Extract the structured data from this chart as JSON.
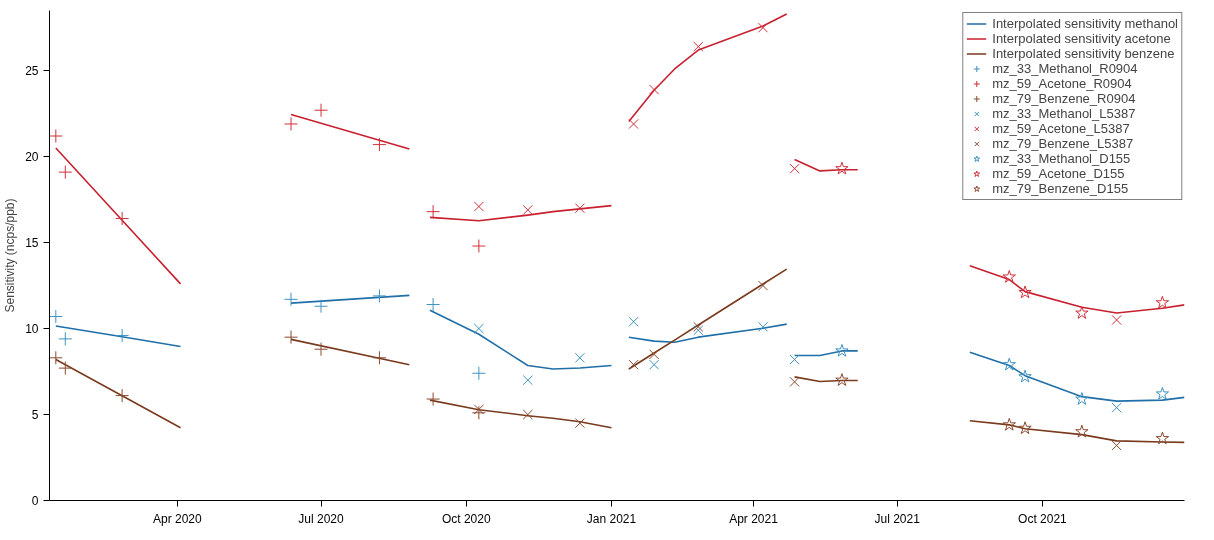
{
  "chart_data": {
    "type": "line",
    "ylabel": "Sensitivity (ncps/ppb)",
    "x": [
      "2020-01-15",
      "2020-02-26",
      "2020-04-03",
      "2020-05-10",
      "2020-06-12",
      "2020-08-26",
      "2020-09-01",
      "2020-09-08",
      "2020-10-09",
      "2020-11-09",
      "2020-11-25",
      "2020-12-12",
      "2021-01-01",
      "2021-01-06",
      "2021-01-12",
      "2021-01-28",
      "2021-02-10",
      "2021-02-25",
      "2021-04-07",
      "2021-04-22",
      "2021-04-25",
      "2021-04-27",
      "2021-05-13",
      "2021-05-27",
      "2021-06-06",
      "2021-07-10",
      "2021-08-16",
      "2021-09-10",
      "2021-09-20",
      "2021-10-26",
      "2021-11-17",
      "2021-12-16",
      "2021-12-30"
    ],
    "series": [
      {
        "name": "Interpolated sensitivity methanol",
        "color": "#1f6fa8",
        "values": [
          10.15,
          9.52,
          8.96,
          null,
          11.48,
          11.93,
          null,
          11.07,
          9.67,
          7.85,
          7.65,
          7.71,
          7.85,
          null,
          9.5,
          9.27,
          9.2,
          9.5,
          10.02,
          10.26,
          null,
          8.43,
          8.43,
          8.7,
          8.7,
          null,
          8.62,
          7.85,
          7.26,
          6.04,
          5.78,
          5.84,
          6.0
        ]
      },
      {
        "name": "Interpolated sensitivity acetone",
        "color": "#c8202f",
        "values": [
          20.5,
          16.3,
          12.6,
          null,
          22.45,
          20.45,
          null,
          16.47,
          16.27,
          16.6,
          16.8,
          16.96,
          17.15,
          null,
          22.05,
          23.86,
          25.1,
          26.2,
          27.6,
          28.3,
          null,
          19.83,
          19.17,
          19.24,
          19.24,
          null,
          13.65,
          12.85,
          12.15,
          11.24,
          10.91,
          11.18,
          11.38
        ]
      },
      {
        "name": "Interpolated sensitivity benzene",
        "color": "#7a3a1e",
        "values": [
          8.2,
          6.09,
          4.23,
          null,
          9.37,
          7.9,
          null,
          5.84,
          5.28,
          4.93,
          4.78,
          4.58,
          4.23,
          null,
          7.65,
          8.58,
          9.33,
          10.21,
          12.59,
          13.46,
          null,
          7.19,
          6.92,
          6.98,
          6.98,
          null,
          4.64,
          4.4,
          4.17,
          3.83,
          3.47,
          3.4,
          3.38
        ]
      },
      {
        "name": "mz_33_Methanol_R0904",
        "type": "scatter",
        "marker": "cross",
        "color": "#3d93c2",
        "x": [
          "2020-01-15",
          "2020-01-21",
          "2020-02-26",
          "2020-06-12",
          "2020-07-01",
          "2020-08-07",
          "2020-09-10",
          "2020-10-09"
        ],
        "values": [
          10.7,
          9.4,
          9.6,
          11.7,
          11.3,
          11.9,
          11.4,
          7.4
        ]
      },
      {
        "name": "mz_59_Acetone_R0904",
        "type": "scatter",
        "marker": "cross",
        "color": "#d0303a",
        "x": [
          "2020-01-15",
          "2020-01-21",
          "2020-02-26",
          "2020-06-12",
          "2020-07-01",
          "2020-08-07",
          "2020-09-10",
          "2020-10-09"
        ],
        "values": [
          21.2,
          19.1,
          16.4,
          21.9,
          22.7,
          20.7,
          16.8,
          14.8
        ]
      },
      {
        "name": "mz_79_Benzene_R0904",
        "type": "scatter",
        "marker": "cross",
        "color": "#8a4a30",
        "x": [
          "2020-01-15",
          "2020-01-21",
          "2020-02-26",
          "2020-06-12",
          "2020-07-01",
          "2020-08-07",
          "2020-09-10",
          "2020-10-09"
        ],
        "values": [
          8.3,
          7.7,
          6.1,
          9.5,
          8.8,
          8.3,
          5.9,
          5.1
        ]
      },
      {
        "name": "mz_33_Methanol_L5387",
        "type": "scatter",
        "marker": "x",
        "color": "#3d93c2",
        "x": [
          "2020-10-09",
          "2020-11-09",
          "2020-12-12",
          "2021-01-15",
          "2021-01-28",
          "2021-02-25",
          "2021-04-07",
          "2021-04-27",
          "2021-11-17"
        ],
        "values": [
          10.0,
          7.0,
          8.3,
          10.4,
          7.9,
          9.9,
          10.1,
          8.2,
          5.4
        ]
      },
      {
        "name": "mz_59_Acetone_L5387",
        "type": "scatter",
        "marker": "x",
        "color": "#d0303a",
        "x": [
          "2020-10-09",
          "2020-11-09",
          "2020-12-12",
          "2021-01-15",
          "2021-01-28",
          "2021-02-25",
          "2021-04-07",
          "2021-04-27",
          "2021-11-17"
        ],
        "values": [
          17.1,
          16.9,
          17.0,
          21.9,
          23.9,
          26.4,
          27.5,
          19.3,
          10.5
        ]
      },
      {
        "name": "mz_79_Benzene_L5387",
        "type": "scatter",
        "marker": "x",
        "color": "#8a4a30",
        "x": [
          "2020-10-09",
          "2020-11-09",
          "2020-12-12",
          "2021-01-15",
          "2021-01-28",
          "2021-02-25",
          "2021-04-07",
          "2021-04-27",
          "2021-11-17"
        ],
        "values": [
          5.3,
          5.0,
          4.5,
          7.9,
          8.5,
          10.1,
          12.5,
          6.9,
          3.2
        ]
      },
      {
        "name": "mz_33_Methanol_D155",
        "type": "scatter",
        "marker": "star",
        "color": "#3d93c2",
        "x": [
          "2021-05-27",
          "2021-09-10",
          "2021-09-20",
          "2021-10-26",
          "2021-12-16"
        ],
        "values": [
          8.7,
          7.9,
          7.2,
          5.9,
          6.2
        ]
      },
      {
        "name": "mz_59_Acetone_D155",
        "type": "scatter",
        "marker": "star",
        "color": "#d0303a",
        "x": [
          "2021-05-27",
          "2021-09-10",
          "2021-09-20",
          "2021-10-26",
          "2021-12-16"
        ],
        "values": [
          19.3,
          13.0,
          12.1,
          10.9,
          11.5
        ]
      },
      {
        "name": "mz_79_Benzene_D155",
        "type": "scatter",
        "marker": "star",
        "color": "#8a4a30",
        "x": [
          "2021-05-27",
          "2021-09-10",
          "2021-09-20",
          "2021-10-26",
          "2021-12-16"
        ],
        "values": [
          7.0,
          4.4,
          4.2,
          4.0,
          3.6
        ]
      }
    ],
    "xlim": [
      "2020-01-11",
      "2021-12-30"
    ],
    "xticks": [
      {
        "value": "2020-04-01",
        "label": "Apr 2020"
      },
      {
        "value": "2020-07-01",
        "label": "Jul 2020"
      },
      {
        "value": "2020-10-01",
        "label": "Oct 2020"
      },
      {
        "value": "2021-01-01",
        "label": "Jan 2021"
      },
      {
        "value": "2021-04-01",
        "label": "Apr 2021"
      },
      {
        "value": "2021-07-01",
        "label": "Jul 2021"
      },
      {
        "value": "2021-10-01",
        "label": "Oct 2021"
      }
    ],
    "ylim": [
      0,
      28.5
    ],
    "yticks": [
      0,
      5,
      10,
      15,
      20,
      25
    ],
    "grid": false,
    "legend": "top right",
    "line_style": "solid"
  }
}
